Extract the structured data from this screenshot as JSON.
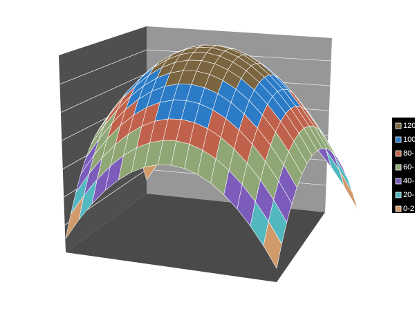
{
  "chart_data": {
    "type": "surface",
    "series": [
      {
        "name": "120",
        "color": "#7a6540"
      },
      {
        "name": "100",
        "color": "#2b7bc6"
      },
      {
        "name": "80-",
        "color": "#c0624b"
      },
      {
        "name": "60-",
        "color": "#8fa775"
      },
      {
        "name": "40-",
        "color": "#7b5cbb"
      },
      {
        "name": "20-",
        "color": "#52b7bf"
      },
      {
        "name": "0-2",
        "color": "#d09a6b"
      }
    ]
  }
}
